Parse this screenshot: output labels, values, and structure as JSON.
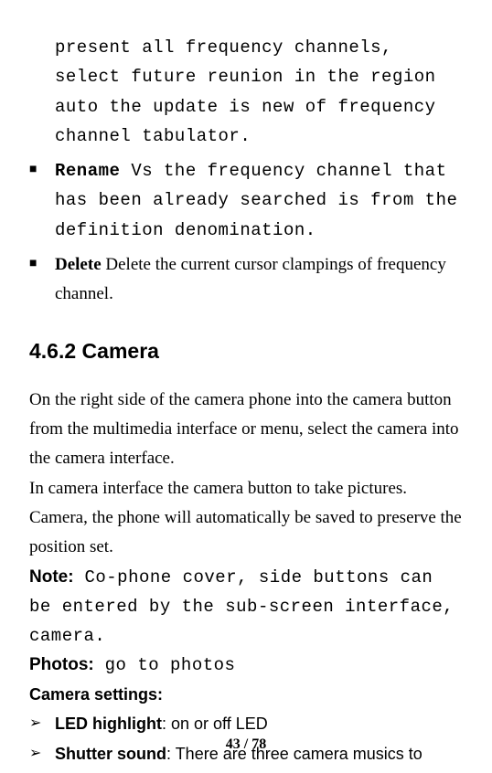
{
  "topBlock": {
    "continuation": "present all frequency channels, select future reunion in the region auto the update is new of frequency channel tabulator.",
    "bullets": [
      {
        "marker": "■",
        "labelClass": "bold-mono",
        "label": "Rename",
        "gap": "   ",
        "textClass": "mono",
        "text": "Vs the frequency channel that has been already searched is from the definition denomination."
      },
      {
        "marker": "■",
        "labelClass": "bold-serif",
        "label": "Delete",
        "gap": "       ",
        "textClass": "",
        "text": "Delete the current cursor clampings of frequency channel."
      }
    ]
  },
  "section": {
    "heading": "4.6.2 Camera",
    "paras": [
      "On the right side of the camera phone into the camera button from the multimedia interface or menu, select the camera into the camera interface.",
      "In camera interface the camera button to take pictures.",
      "Camera, the phone will automatically be saved to preserve the position set."
    ],
    "noteLine": {
      "label": "Note:",
      "text": " Co-phone cover, side buttons can be entered by the sub-screen interface, camera."
    },
    "photosLine": {
      "label": "Photos:",
      "text": " go to photos"
    },
    "cameraSettingsLabel": "Camera settings:",
    "arrowItems": [
      {
        "marker": "➢",
        "label": "LED highlight",
        "sep": ": ",
        "text": "on or off LED"
      },
      {
        "marker": "➢",
        "label": "Shutter sound",
        "sep": ": ",
        "text": "There are three camera musics to"
      }
    ]
  },
  "pageNumber": "43 / 78"
}
